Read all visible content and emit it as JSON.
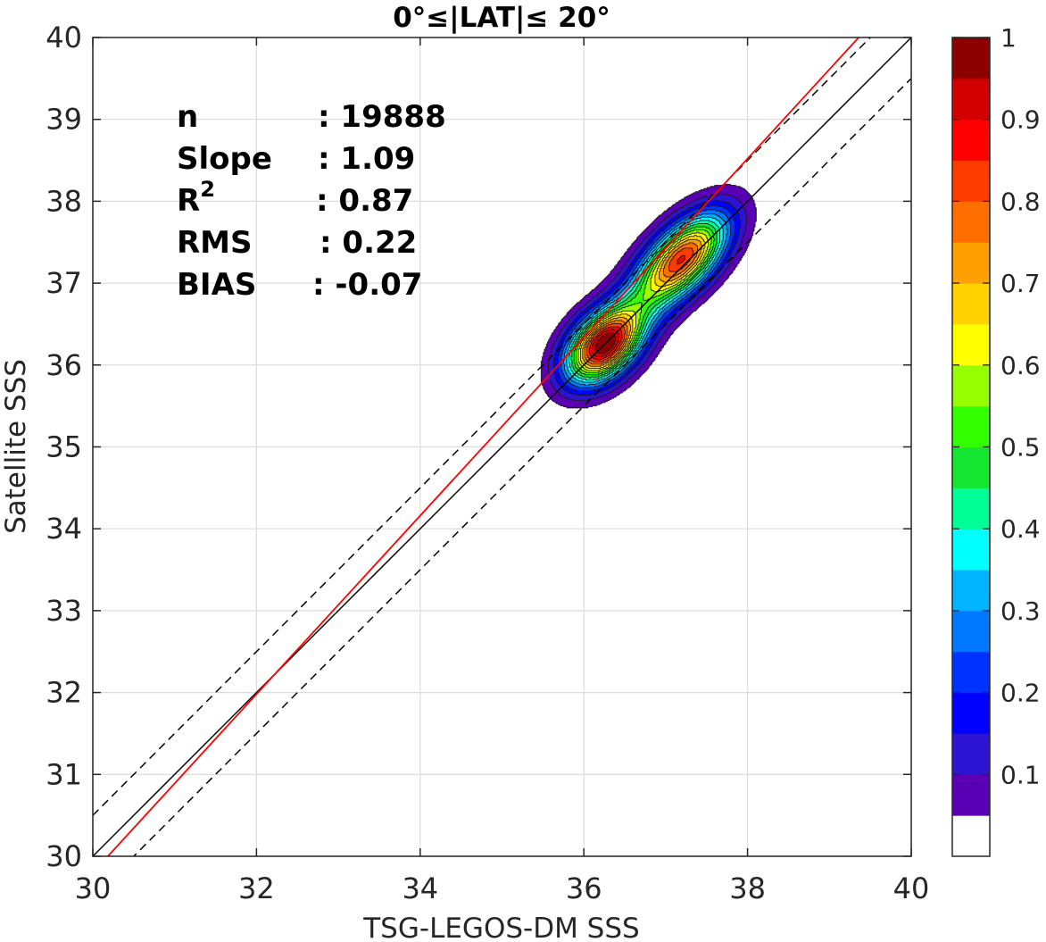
{
  "chart_data": {
    "type": "contour-density-scatter",
    "title": "0°≤|LAT|≤ 20°",
    "xlabel": "TSG-LEGOS-DM SSS",
    "ylabel": "Satellite SSS",
    "xlim": [
      30,
      40
    ],
    "ylim": [
      30,
      40
    ],
    "xticks": [
      "30",
      "32",
      "34",
      "36",
      "38",
      "40"
    ],
    "yticks": [
      "30",
      "31",
      "32",
      "33",
      "34",
      "35",
      "36",
      "37",
      "38",
      "39",
      "40"
    ],
    "grid": true,
    "stats": [
      {
        "label": "n",
        "value": ": 19888"
      },
      {
        "label": "Slope",
        "value": ": 1.09"
      },
      {
        "label": "R",
        "sup": "2",
        "value": ": 0.87"
      },
      {
        "label": "RMS",
        "value": ": 0.22"
      },
      {
        "label": "BIAS",
        "value": ": -0.07"
      }
    ],
    "lines": [
      {
        "role": "identity",
        "style": "solid",
        "color": "#000000",
        "slope": 1,
        "intercept": 0
      },
      {
        "role": "identity-plus",
        "style": "dashed",
        "color": "#000000",
        "slope": 1,
        "intercept": 0.5
      },
      {
        "role": "identity-minus",
        "style": "dashed",
        "color": "#000000",
        "slope": 1,
        "intercept": -0.5
      },
      {
        "role": "regression",
        "style": "solid",
        "color": "#ff0000",
        "slope": 1.09,
        "intercept": -2.9
      }
    ],
    "density_peaks": [
      {
        "x": 36.25,
        "y": 36.25,
        "peak": 1.0
      },
      {
        "x": 37.2,
        "y": 37.3,
        "peak": 0.85
      }
    ],
    "colorbar": {
      "range": [
        0,
        1
      ],
      "tick_labels": [
        "0.1",
        "0.2",
        "0.3",
        "0.4",
        "0.5",
        "0.6",
        "0.7",
        "0.8",
        "0.9",
        "1"
      ],
      "colors": [
        "#ffffff",
        "#5a00b4",
        "#2d14d2",
        "#0000ff",
        "#0032ff",
        "#0078ff",
        "#00b4ff",
        "#00ffff",
        "#00ff96",
        "#14e632",
        "#32ff00",
        "#96ff00",
        "#ffff00",
        "#ffd200",
        "#ffa000",
        "#ff6e00",
        "#ff3c00",
        "#ff0000",
        "#d20000",
        "#8c0000"
      ]
    }
  }
}
